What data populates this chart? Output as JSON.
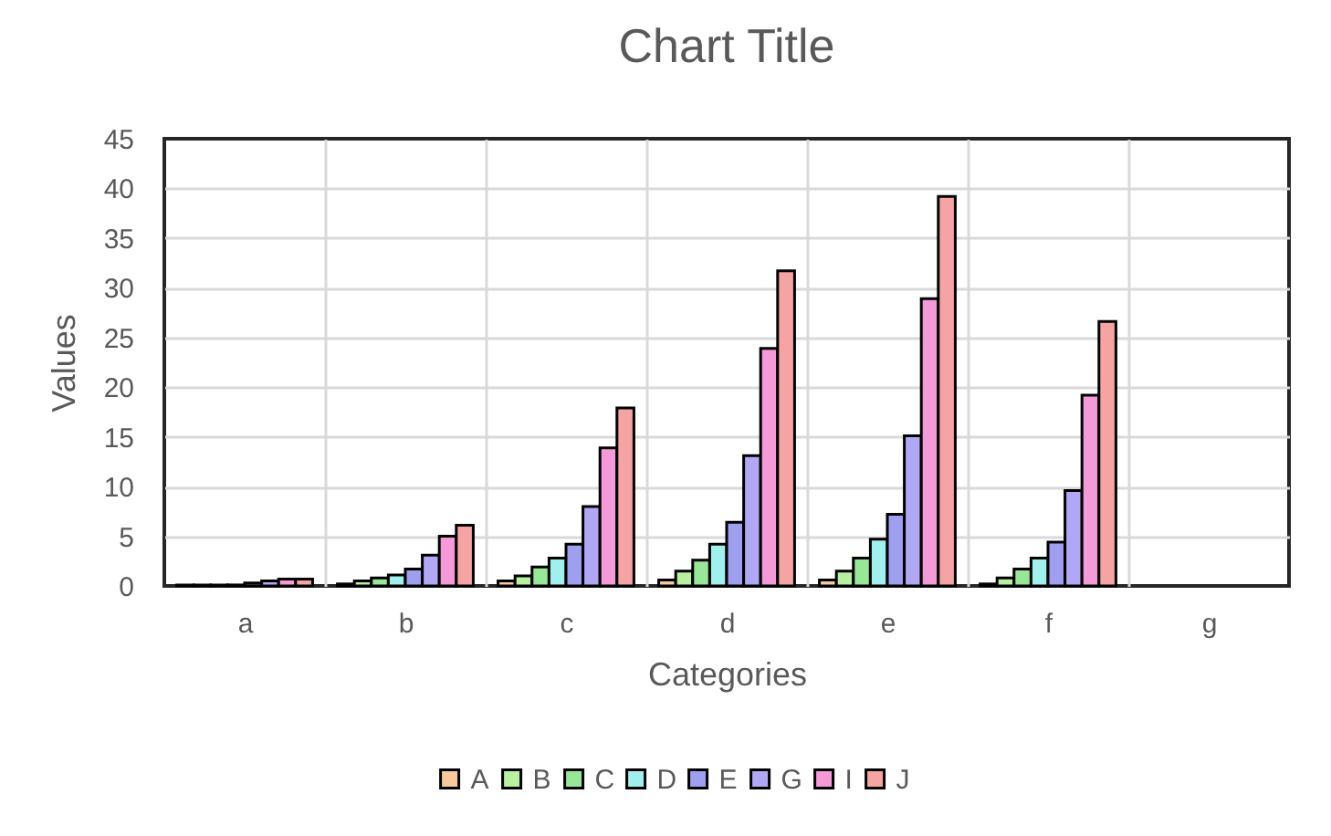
{
  "chart_data": {
    "type": "bar",
    "title": "Chart Title",
    "xlabel": "Categories",
    "ylabel": "Values",
    "categories": [
      "a",
      "b",
      "c",
      "d",
      "e",
      "f",
      "g"
    ],
    "series": [
      {
        "name": "A",
        "color": "#f7c99a",
        "values": [
          0.1,
          0.2,
          0.5,
          0.6,
          0.6,
          0.2,
          null
        ]
      },
      {
        "name": "B",
        "color": "#b9f0a0",
        "values": [
          0.1,
          0.5,
          1.0,
          1.5,
          1.5,
          0.8,
          null
        ]
      },
      {
        "name": "C",
        "color": "#98e698",
        "values": [
          0.1,
          0.8,
          1.9,
          2.6,
          2.8,
          1.7,
          null
        ]
      },
      {
        "name": "D",
        "color": "#a0f0ee",
        "values": [
          0.1,
          1.1,
          2.8,
          4.2,
          4.7,
          2.8,
          null
        ]
      },
      {
        "name": "E",
        "color": "#9f9ff0",
        "values": [
          0.3,
          1.7,
          4.2,
          6.4,
          7.2,
          4.4,
          null
        ]
      },
      {
        "name": "G",
        "color": "#b0a8f5",
        "values": [
          0.5,
          3.1,
          8.0,
          13.1,
          15.1,
          9.6,
          null
        ]
      },
      {
        "name": "I",
        "color": "#f59ad8",
        "values": [
          0.7,
          5.0,
          13.9,
          23.9,
          28.9,
          19.2,
          null
        ]
      },
      {
        "name": "J",
        "color": "#f5a3a3",
        "values": [
          0.7,
          6.1,
          17.9,
          31.7,
          39.2,
          26.6,
          null
        ]
      }
    ],
    "ylim": [
      0,
      45
    ],
    "yticks": [
      0,
      5,
      10,
      15,
      20,
      25,
      30,
      35,
      40,
      45
    ],
    "grid": true,
    "legend": "bottom"
  }
}
